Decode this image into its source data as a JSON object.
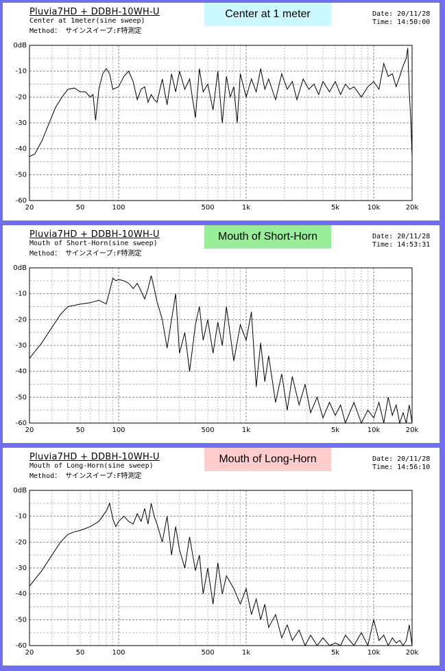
{
  "panels": [
    {
      "title": "Pluvia7HD + DDBH-10WH-U",
      "subtitle": "Center at 1meter(sine sweep)",
      "method": "Method： サインスイープ:F特測定",
      "badge": {
        "text": "Center at 1 meter",
        "color": "#ccf9ff"
      },
      "date": "Date: 20/11/28",
      "time": "Time: 14:50:00"
    },
    {
      "title": "Pluvia7HD + DDBH-10WH-U",
      "subtitle": "Mouth of Short-Horn(sine sweep)",
      "method": "Method： サインスイープ:F特測定",
      "badge": {
        "text": "Mouth of Short-Horn",
        "color": "#99ee99"
      },
      "date": "Date: 20/11/28",
      "time": "Time: 14:53:31"
    },
    {
      "title": "Pluvia7HD + DDBH-10WH-U",
      "subtitle": "Mouth of Long-Horn(sine sweep)",
      "method": "Method： サインスイープ:F特測定",
      "badge": {
        "text": "Mouth of Long-Horn",
        "color": "#ffcccc"
      },
      "date": "Date: 20/11/28",
      "time": "Time: 14:56:10"
    }
  ],
  "chart_data": [
    {
      "type": "line",
      "title": "Center at 1 meter",
      "x_scale": "log",
      "xlim": [
        20,
        20000
      ],
      "ylim": [
        -60,
        0
      ],
      "x_ticks": [
        "20",
        "50",
        "100",
        "500",
        "1k",
        "5k",
        "10k",
        "20k"
      ],
      "x_tick_values": [
        20,
        50,
        100,
        500,
        1000,
        5000,
        10000,
        20000
      ],
      "y_ticks": [
        "0dB",
        "-10",
        "-20",
        "-30",
        "-40",
        "-50",
        "-60"
      ],
      "y_tick_values": [
        0,
        -10,
        -20,
        -30,
        -40,
        -50,
        -60
      ],
      "grid": true,
      "x": [
        20,
        22,
        25,
        28,
        32,
        36,
        40,
        45,
        50,
        55,
        60,
        63,
        66,
        70,
        75,
        80,
        85,
        90,
        100,
        110,
        120,
        130,
        140,
        150,
        160,
        170,
        180,
        190,
        200,
        220,
        240,
        260,
        280,
        300,
        330,
        360,
        400,
        430,
        460,
        500,
        550,
        600,
        650,
        700,
        750,
        800,
        850,
        900,
        1000,
        1100,
        1200,
        1300,
        1400,
        1500,
        1700,
        1900,
        2100,
        2300,
        2500,
        2800,
        3100,
        3400,
        3700,
        4000,
        4500,
        5000,
        5500,
        6000,
        6500,
        7000,
        8000,
        9000,
        10000,
        11000,
        12000,
        13000,
        14000,
        15000,
        16000,
        17000,
        18000,
        18500,
        19000,
        19500,
        20000
      ],
      "y": [
        -43,
        -42,
        -37,
        -31,
        -24,
        -20,
        -17,
        -16.5,
        -18,
        -18,
        -20,
        -19,
        -29,
        -17,
        -11,
        -9,
        -11,
        -17,
        -16,
        -12,
        -10,
        -14,
        -21,
        -17,
        -16,
        -22,
        -19,
        -21,
        -22,
        -13,
        -23,
        -11,
        -18,
        -10,
        -17,
        -13,
        -28,
        -9,
        -18,
        -15,
        -25,
        -10,
        -30,
        -12,
        -20,
        -16,
        -30,
        -11,
        -20,
        -13,
        -18,
        -9,
        -17,
        -13,
        -21,
        -11,
        -17,
        -14,
        -21,
        -13,
        -17,
        -15,
        -19,
        -14,
        -18,
        -14,
        -19,
        -15,
        -17,
        -16,
        -20,
        -16,
        -14,
        -17,
        -7,
        -12,
        -11,
        -16,
        -12,
        -8,
        -5,
        -1,
        -18,
        -28,
        -43
      ]
    },
    {
      "type": "line",
      "title": "Mouth of Short-Horn",
      "x_scale": "log",
      "xlim": [
        20,
        20000
      ],
      "ylim": [
        -60,
        0
      ],
      "x_ticks": [
        "20",
        "50",
        "100",
        "500",
        "1k",
        "5k",
        "10k",
        "20k"
      ],
      "x_tick_values": [
        20,
        50,
        100,
        500,
        1000,
        5000,
        10000,
        20000
      ],
      "y_ticks": [
        "0dB",
        "-10",
        "-20",
        "-30",
        "-40",
        "-50",
        "-60"
      ],
      "y_tick_values": [
        0,
        -10,
        -20,
        -30,
        -40,
        -50,
        -60
      ],
      "grid": true,
      "x": [
        20,
        25,
        30,
        35,
        40,
        45,
        50,
        60,
        70,
        80,
        85,
        90,
        95,
        100,
        110,
        120,
        130,
        140,
        150,
        160,
        170,
        180,
        190,
        200,
        220,
        240,
        260,
        280,
        300,
        330,
        360,
        400,
        430,
        460,
        500,
        550,
        600,
        650,
        700,
        800,
        900,
        1000,
        1100,
        1200,
        1300,
        1400,
        1500,
        1700,
        1900,
        2100,
        2300,
        2600,
        2900,
        3200,
        3600,
        4000,
        4500,
        5000,
        5500,
        6000,
        7000,
        8000,
        9000,
        10000,
        11000,
        12000,
        13000,
        14000,
        15000,
        16000,
        17000,
        18000,
        19000,
        20000
      ],
      "y": [
        -35,
        -29,
        -23,
        -18,
        -15,
        -14.5,
        -14,
        -13.5,
        -12.5,
        -14,
        -9,
        -4,
        -5,
        -4.5,
        -5,
        -6,
        -8,
        -6,
        -9,
        -12,
        -8,
        -3,
        -8,
        -13,
        -20,
        -31,
        -20,
        -10,
        -33,
        -25,
        -40,
        -22,
        -15,
        -28,
        -20,
        -33,
        -21,
        -30,
        -15,
        -36,
        -22,
        -28,
        -17,
        -46,
        -29,
        -44,
        -34,
        -52,
        -41,
        -55,
        -42,
        -53,
        -45,
        -56,
        -50,
        -58,
        -52,
        -57,
        -53,
        -60,
        -52,
        -60,
        -55,
        -58,
        -52,
        -60,
        -50,
        -57,
        -53,
        -60,
        -56,
        -61,
        -53,
        -61
      ]
    },
    {
      "type": "line",
      "title": "Mouth of Long-Horn",
      "x_scale": "log",
      "xlim": [
        20,
        20000
      ],
      "ylim": [
        -60,
        0
      ],
      "x_ticks": [
        "20",
        "50",
        "100",
        "500",
        "1k",
        "5k",
        "10k",
        "20k"
      ],
      "x_tick_values": [
        20,
        50,
        100,
        500,
        1000,
        5000,
        10000,
        20000
      ],
      "y_ticks": [
        "0dB",
        "-10",
        "-20",
        "-30",
        "-40",
        "-50",
        "-60"
      ],
      "y_tick_values": [
        0,
        -10,
        -20,
        -30,
        -40,
        -50,
        -60
      ],
      "grid": true,
      "x": [
        20,
        25,
        30,
        35,
        40,
        45,
        50,
        60,
        70,
        80,
        85,
        90,
        95,
        100,
        110,
        120,
        130,
        140,
        150,
        160,
        170,
        180,
        190,
        200,
        220,
        240,
        260,
        280,
        300,
        330,
        360,
        400,
        430,
        460,
        500,
        550,
        600,
        650,
        700,
        800,
        900,
        1000,
        1100,
        1200,
        1300,
        1400,
        1500,
        1700,
        1900,
        2100,
        2300,
        2600,
        2900,
        3200,
        3600,
        4000,
        4500,
        5000,
        5500,
        6000,
        7000,
        8000,
        9000,
        10000,
        11000,
        12000,
        13000,
        14000,
        15000,
        16000,
        17000,
        18000,
        19000,
        20000
      ],
      "y": [
        -37,
        -31,
        -25,
        -20,
        -17,
        -16,
        -15.5,
        -14,
        -12,
        -8,
        -5,
        -11,
        -14,
        -12,
        -10,
        -12,
        -13,
        -9,
        -12,
        -7,
        -13,
        -5,
        -10,
        -13,
        -20,
        -10,
        -25,
        -14,
        -23,
        -30,
        -18,
        -31,
        -25,
        -40,
        -30,
        -44,
        -28,
        -40,
        -33,
        -38,
        -44,
        -38,
        -48,
        -42,
        -50,
        -44,
        -53,
        -48,
        -57,
        -52,
        -58,
        -54,
        -60,
        -56,
        -60,
        -57,
        -61,
        -59,
        -60,
        -56,
        -60,
        -55,
        -60,
        -50,
        -58,
        -56,
        -60,
        -57,
        -59,
        -58,
        -60,
        -58,
        -52,
        -60
      ]
    }
  ]
}
